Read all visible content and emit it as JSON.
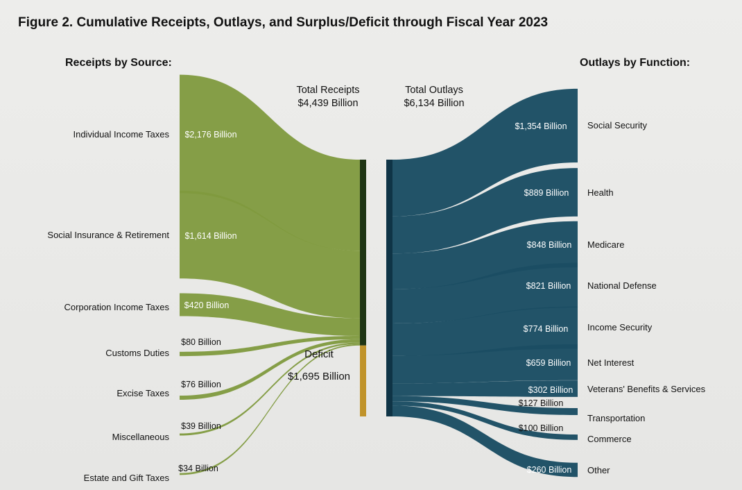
{
  "title": "Figure 2. Cumulative Receipts, Outlays, and Surplus/Deficit through Fiscal Year 2023",
  "receipts_heading": "Receipts by Source:",
  "outlays_heading": "Outlays by Function:",
  "total_receipts": {
    "label": "Total Receipts",
    "value": "$4,439 Billion"
  },
  "total_outlays": {
    "label": "Total Outlays",
    "value": "$6,134 Billion"
  },
  "deficit": {
    "label": "Deficit",
    "value": "$1,695 Billion"
  },
  "colors": {
    "receipts": "#7f9a3e",
    "receipts_bar": "#1f3514",
    "deficit_bar": "#c0932a",
    "outlays": "#1b4d63",
    "outlays_bar": "#0f3446"
  },
  "chart_data": {
    "type": "sankey",
    "units": "Billion",
    "receipts": [
      {
        "name": "Individual Income Taxes",
        "value": 2176,
        "label": "$2,176 Billion"
      },
      {
        "name": "Social Insurance & Retirement",
        "value": 1614,
        "label": "$1,614 Billion"
      },
      {
        "name": "Corporation Income Taxes",
        "value": 420,
        "label": "$420 Billion"
      },
      {
        "name": "Customs Duties",
        "value": 80,
        "label": "$80 Billion"
      },
      {
        "name": "Excise Taxes",
        "value": 76,
        "label": "$76 Billion"
      },
      {
        "name": "Miscellaneous",
        "value": 39,
        "label": "$39 Billion"
      },
      {
        "name": "Estate and Gift Taxes",
        "value": 34,
        "label": "$34 Billion"
      }
    ],
    "outlays": [
      {
        "name": "Social Security",
        "value": 1354,
        "label": "$1,354 Billion"
      },
      {
        "name": "Health",
        "value": 889,
        "label": "$889 Billion"
      },
      {
        "name": "Medicare",
        "value": 848,
        "label": "$848 Billion"
      },
      {
        "name": "National Defense",
        "value": 821,
        "label": "$821 Billion"
      },
      {
        "name": "Income Security",
        "value": 774,
        "label": "$774 Billion"
      },
      {
        "name": "Net Interest",
        "value": 659,
        "label": "$659 Billion"
      },
      {
        "name": "Veterans' Benefits & Services",
        "value": 302,
        "label": "$302 Billion"
      },
      {
        "name": "Transportation",
        "value": 127,
        "label": "$127 Billion"
      },
      {
        "name": "Commerce",
        "value": 100,
        "label": "$100 Billion"
      },
      {
        "name": "Other",
        "value": 260,
        "label": "$260 Billion"
      }
    ],
    "total_receipts": 4439,
    "total_outlays": 6134,
    "deficit": 1695
  }
}
